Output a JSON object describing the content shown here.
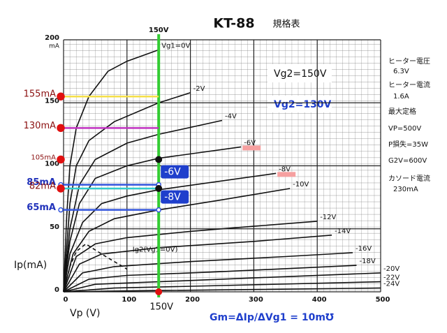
{
  "chart_data": {
    "type": "line",
    "title": "KT-88",
    "subtitle": "規格表",
    "xlabel": "Vp (V)",
    "ylabel": "Ip(mA)",
    "yunit": "mA",
    "xlim": [
      0,
      500
    ],
    "ylim": [
      0,
      200
    ],
    "xticks": [
      0,
      100,
      200,
      300,
      400,
      500
    ],
    "yticks": [
      0,
      50,
      100,
      150,
      200
    ],
    "grid": true,
    "series": [
      {
        "name": "Vg1=0V",
        "color": "#111111",
        "x": [
          0,
          5,
          10,
          20,
          40,
          70,
          100,
          150
        ],
        "values": [
          0,
          60,
          100,
          130,
          155,
          175,
          183,
          192
        ]
      },
      {
        "name": "-2V",
        "color": "#111111",
        "x": [
          0,
          10,
          20,
          40,
          80,
          150,
          200
        ],
        "values": [
          0,
          70,
          100,
          120,
          135,
          150,
          158
        ]
      },
      {
        "name": "-4V",
        "color": "#111111",
        "x": [
          0,
          10,
          25,
          50,
          100,
          150,
          250
        ],
        "values": [
          0,
          50,
          85,
          105,
          118,
          125,
          136
        ]
      },
      {
        "name": "-6V",
        "color": "#111111",
        "x": [
          0,
          10,
          25,
          50,
          100,
          150,
          280
        ],
        "values": [
          0,
          40,
          70,
          90,
          100,
          106,
          115
        ]
      },
      {
        "name": "-8V",
        "color": "#111111",
        "x": [
          0,
          10,
          30,
          60,
          100,
          150,
          335
        ],
        "values": [
          0,
          30,
          55,
          70,
          76,
          81,
          94
        ]
      },
      {
        "name": "-10V",
        "color": "#111111",
        "x": [
          0,
          15,
          40,
          80,
          150,
          250,
          357
        ],
        "values": [
          0,
          30,
          48,
          58,
          65,
          73,
          82
        ]
      },
      {
        "name": "-12V",
        "color": "#111111",
        "x": [
          0,
          20,
          50,
          100,
          200,
          300,
          400
        ],
        "values": [
          0,
          28,
          38,
          43,
          48,
          52,
          56
        ]
      },
      {
        "name": "-14V",
        "color": "#111111",
        "x": [
          0,
          25,
          60,
          150,
          300,
          423
        ],
        "values": [
          0,
          22,
          30,
          35,
          40,
          45
        ]
      },
      {
        "name": "-16V",
        "color": "#111111",
        "x": [
          0,
          30,
          80,
          200,
          350,
          456
        ],
        "values": [
          0,
          15,
          20,
          24,
          28,
          31
        ]
      },
      {
        "name": "-18V",
        "color": "#111111",
        "x": [
          0,
          40,
          100,
          250,
          462
        ],
        "values": [
          0,
          10,
          13,
          16,
          21
        ]
      },
      {
        "name": "-20V",
        "color": "#111111",
        "x": [
          0,
          50,
          150,
          300,
          500
        ],
        "values": [
          0,
          6,
          8,
          11,
          15
        ]
      },
      {
        "name": "-22V",
        "color": "#111111",
        "x": [
          0,
          80,
          250,
          500
        ],
        "values": [
          0,
          3,
          5,
          8
        ]
      },
      {
        "name": "-24V",
        "color": "#111111",
        "x": [
          0,
          150,
          500
        ],
        "values": [
          0,
          1,
          3
        ]
      },
      {
        "name": "Ig2(Vg1=0V)",
        "color": "#111111",
        "dashed": true,
        "x": [
          0,
          10,
          20,
          35,
          60,
          100
        ],
        "values": [
          0,
          20,
          32,
          38,
          30,
          18
        ]
      }
    ],
    "vline": {
      "label": "150V",
      "value": 150,
      "color": "#33cc33"
    },
    "markers": [
      {
        "label": "155mA",
        "value": 155,
        "color": "#f5e04a",
        "dot": "#e01010",
        "text_color": "#8b1010"
      },
      {
        "label": "130mA",
        "value": 130,
        "color": "#c030c0",
        "dot": "#e01010",
        "text_color": "#8b1010"
      },
      {
        "label": "105mA",
        "value": 105,
        "dot": "#e01010",
        "end_dot": "#111111",
        "text_color": "#8b1010"
      },
      {
        "label": "85mA",
        "value": 85,
        "color": "#3355dd",
        "dot": "#3355dd",
        "hollow": true,
        "text_color": "#2233bb",
        "box": "-6V"
      },
      {
        "label": "82mA",
        "value": 82,
        "color": "#33cccc",
        "dot": "#e01010",
        "end_dot": "#111111",
        "text_color": "#8b1010"
      },
      {
        "label": "65mA",
        "value": 65,
        "color": "#3355dd",
        "dot": "#3355dd",
        "hollow": true,
        "text_color": "#2233bb",
        "box": "-8V"
      }
    ],
    "vg2_main": "Vg2=150V",
    "vg2_alt": "Vg2=130V",
    "gm": "Gm=ΔIp/ΔVg1 = 10m℧",
    "specs": [
      "ヒーター電圧",
      "6.3V",
      "ヒーター電流",
      "1.6A",
      "最大定格",
      "VP=500V",
      "P損失=35W",
      "G2V=600V",
      "カソード電流",
      "230mA"
    ]
  }
}
